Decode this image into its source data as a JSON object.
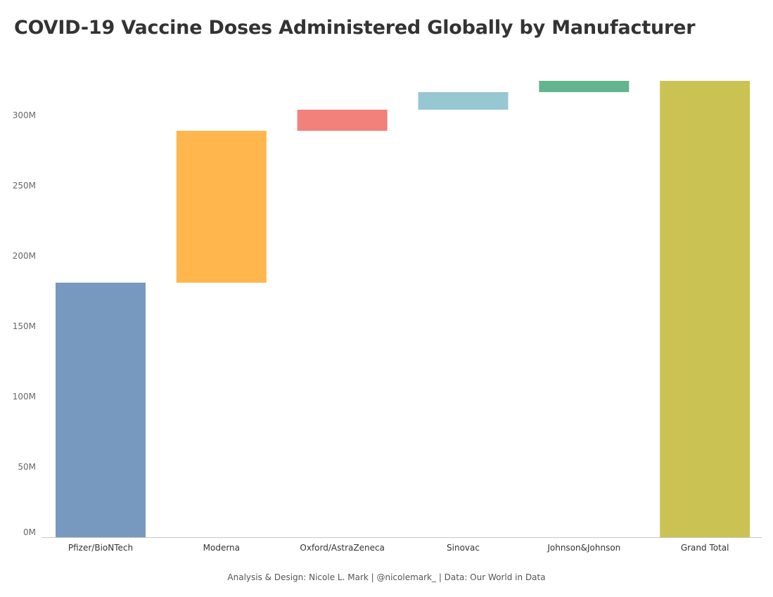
{
  "title": "COVID-19 Vaccine Doses Administered Globally by Manufacturer",
  "footer": "Analysis & Design: Nicole L. Mark | @nicolemark_ | Data: Our World in Data",
  "chart_data": {
    "type": "bar",
    "subtype": "waterfall",
    "categories": [
      "Pfizer/BioNTech",
      "Moderna",
      "Oxford/AstraZeneca",
      "Sinovac",
      "Johnson&Johnson",
      "Grand Total"
    ],
    "values": [
      181,
      108,
      15,
      12.5,
      8,
      324.5
    ],
    "value_unit": "M",
    "colors": [
      "#7799c0",
      "#ffb74d",
      "#f2807b",
      "#97c7d0",
      "#64b48f",
      "#cac354"
    ],
    "ylim": [
      0,
      330
    ],
    "yticks": [
      0,
      50,
      100,
      150,
      200,
      250,
      300
    ],
    "ytick_labels": [
      "0M",
      "50M",
      "100M",
      "150M",
      "200M",
      "250M",
      "300M"
    ],
    "grid": false,
    "legend": "none"
  }
}
